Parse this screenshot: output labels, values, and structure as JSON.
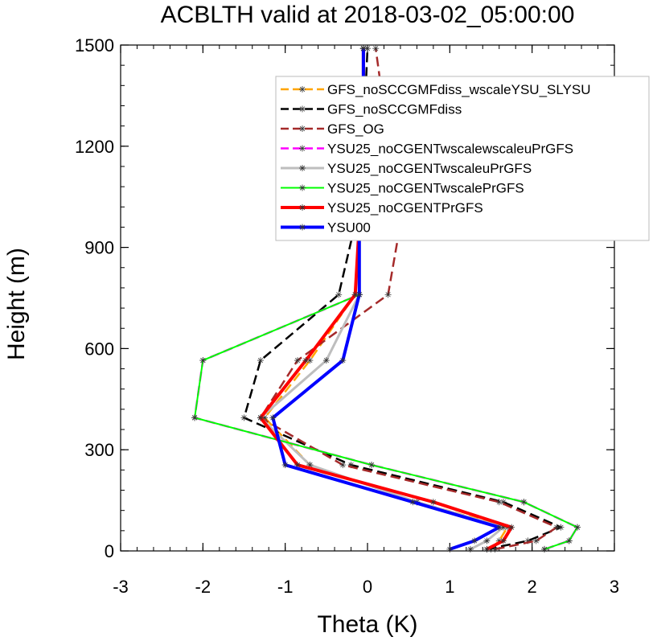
{
  "chart_data": {
    "type": "line",
    "title": "ACBLTH valid at 2018-03-02_05:00:00",
    "xlabel": "Theta (K)",
    "ylabel": "Height (m)",
    "xlim": [
      -3,
      3
    ],
    "ylim": [
      0,
      1500
    ],
    "xticks": [
      "-3",
      "-2",
      "-1",
      "0",
      "1",
      "2",
      "3"
    ],
    "yticks": [
      "0",
      "300",
      "600",
      "900",
      "1200",
      "1500"
    ],
    "legend_position": "top-right",
    "y": [
      5,
      30,
      70,
      145,
      255,
      395,
      565,
      760,
      970,
      1220,
      1490
    ],
    "series": [
      {
        "name": "GFS_noSCCGMFdiss_wscaleYSU_SLYSU",
        "color": "#ffa500",
        "dash": "dash",
        "width": 2.5,
        "values": [
          1.5,
          1.6,
          1.7,
          0.6,
          -0.7,
          -1.25,
          -0.7,
          -0.15,
          -0.1,
          -0.05,
          -0.05
        ]
      },
      {
        "name": "GFS_noSCCGMFdiss",
        "color": "#000000",
        "dash": "dash",
        "width": 2.5,
        "values": [
          1.45,
          1.95,
          2.35,
          1.65,
          -0.2,
          -1.5,
          -1.3,
          -0.35,
          -0.15,
          -0.05,
          0.0
        ]
      },
      {
        "name": "GFS_OG",
        "color": "#a52a2a",
        "dash": "dash",
        "width": 2.5,
        "values": [
          1.55,
          2.05,
          2.3,
          1.6,
          -0.3,
          -1.3,
          -0.85,
          0.25,
          0.4,
          0.25,
          0.1
        ]
      },
      {
        "name": "YSU25_noCGENTwscalewscaleuPrGFS",
        "color": "#ff00ff",
        "dash": "dash",
        "width": 2.5,
        "values": [
          2.15,
          2.45,
          2.55,
          1.9,
          0.05,
          -2.1,
          -2.0,
          -0.1,
          -0.1,
          -0.05,
          -0.05
        ]
      },
      {
        "name": "YSU25_noCGENTwscaleuPrGFS",
        "color": "#bebebe",
        "dash": "solid",
        "width": 3,
        "values": [
          1.25,
          1.45,
          1.65,
          0.6,
          -0.7,
          -1.3,
          -0.5,
          -0.1,
          -0.1,
          -0.05,
          -0.05
        ]
      },
      {
        "name": "YSU25_noCGENTwscalePrGFS",
        "color": "#00ff00",
        "dash": "solid",
        "width": 2,
        "values": [
          2.15,
          2.45,
          2.55,
          1.9,
          0.05,
          -2.1,
          -2.0,
          -0.1,
          -0.1,
          -0.05,
          -0.05
        ]
      },
      {
        "name": "YSU25_noCGENTPrGFS",
        "color": "#ff0000",
        "dash": "solid",
        "width": 4,
        "values": [
          1.45,
          1.65,
          1.75,
          0.8,
          -0.85,
          -1.3,
          -0.75,
          -0.15,
          -0.1,
          -0.05,
          -0.05
        ]
      },
      {
        "name": "YSU00",
        "color": "#0000ff",
        "dash": "solid",
        "width": 4,
        "values": [
          1.0,
          1.3,
          1.6,
          0.55,
          -1.0,
          -1.15,
          -0.3,
          -0.1,
          -0.1,
          -0.05,
          -0.05
        ]
      }
    ]
  }
}
